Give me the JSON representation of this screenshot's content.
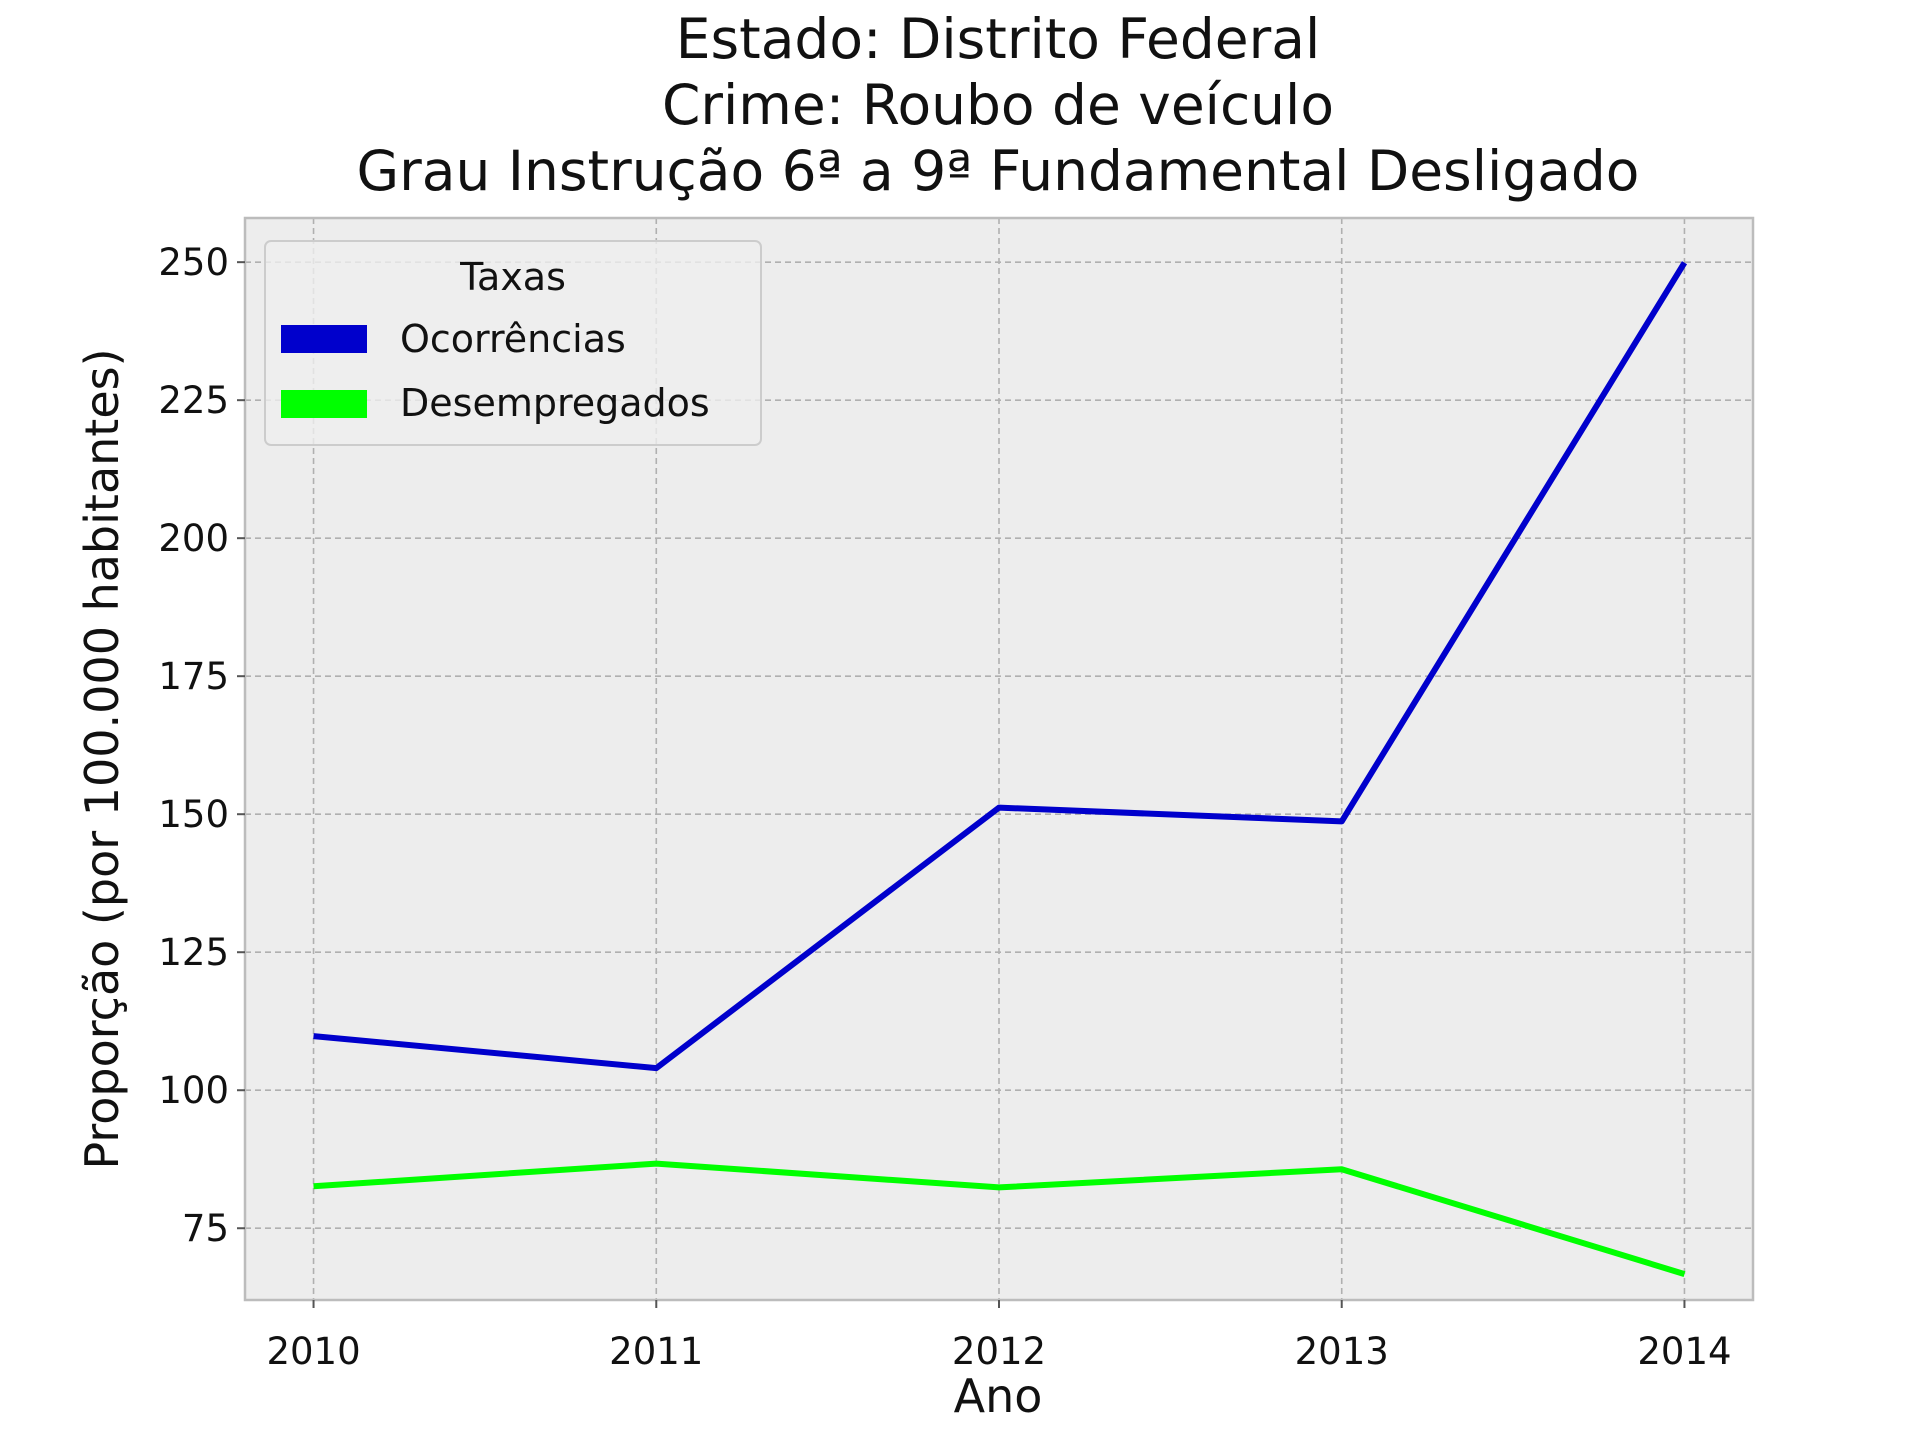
{
  "chart_data": {
    "type": "line",
    "title_lines": [
      "Estado: Distrito Federal",
      "Crime: Roubo de veículo",
      "Grau Instrução  6ª a 9ª Fundamental   Desligado"
    ],
    "xlabel": "Ano",
    "ylabel": "Proporção (por 100.000 habitantes)",
    "x": [
      2010,
      2011,
      2012,
      2013,
      2014
    ],
    "x_tick_labels": [
      "2010",
      "2011",
      "2012",
      "2013",
      "2014"
    ],
    "xlim": [
      2009.8,
      2014.2
    ],
    "ylim": [
      62,
      258
    ],
    "y_ticks": [
      75,
      100,
      125,
      150,
      175,
      200,
      225,
      250
    ],
    "grid": true,
    "legend": {
      "title": "Taxas",
      "placement": "top-left"
    },
    "series": [
      {
        "name": "Ocorrências",
        "color": "#0000cc",
        "values": [
          109.8,
          104.0,
          151.2,
          148.7,
          249.9
        ]
      },
      {
        "name": "Desempregados",
        "color": "#00ff00",
        "values": [
          82.6,
          86.7,
          82.4,
          85.7,
          66.7
        ]
      }
    ]
  }
}
